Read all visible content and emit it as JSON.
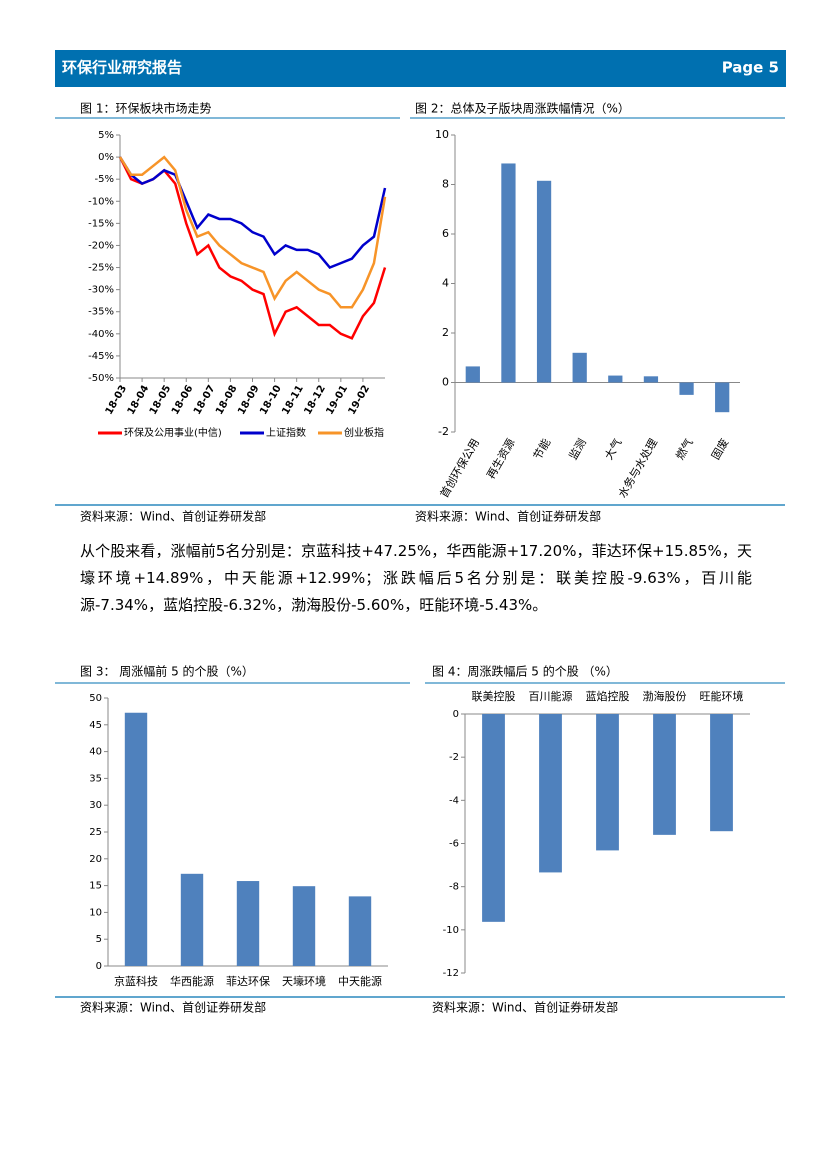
{
  "header": {
    "title": "环保行业研究报告",
    "page": "Page 5"
  },
  "paragraph": "从个股来看，涨幅前5名分别是：京蓝科技+47.25%，华西能源+17.20%，菲达环保+15.85%，天壕环境+14.89%，中天能源+12.99%；涨跌幅后5名分别是：联美控股-9.63%，百川能源-7.34%，蓝焰控股-6.32%，渤海股份-5.60%，旺能环境-5.43%。",
  "chart_data": [
    {
      "type": "line",
      "title": "图 1：环保板块市场走势",
      "source": "资料来源：Wind、首创证券研发部",
      "categories": [
        "18-03",
        null,
        "18-04",
        null,
        "18-05",
        null,
        "18-06",
        null,
        "18-07",
        null,
        "18-08",
        null,
        "18-09",
        null,
        "18-10",
        null,
        "18-11",
        null,
        "18-12",
        null,
        "19-01",
        null,
        "19-02",
        null,
        null
      ],
      "series": [
        {
          "name": "环保及公用事业(中信)",
          "color": "#ff0000",
          "values": [
            0,
            -5,
            -6,
            -5,
            -3,
            -6,
            -15,
            -22,
            -20,
            -25,
            -27,
            -28,
            -30,
            -31,
            -40,
            -35,
            -34,
            -36,
            -38,
            -38,
            -40,
            -41,
            -36,
            -33,
            -25
          ]
        },
        {
          "name": "上证指数",
          "color": "#0000cc",
          "values": [
            0,
            -4,
            -6,
            -5,
            -3,
            -4,
            -10,
            -16,
            -13,
            -14,
            -14,
            -15,
            -17,
            -18,
            -22,
            -20,
            -21,
            -21,
            -22,
            -25,
            -24,
            -23,
            -20,
            -18,
            -7
          ]
        },
        {
          "name": "创业板指",
          "color": "#f79428",
          "values": [
            0,
            -4,
            -4,
            -2,
            0,
            -3,
            -12,
            -18,
            -17,
            -20,
            -22,
            -24,
            -25,
            -26,
            -32,
            -28,
            -26,
            -28,
            -30,
            -31,
            -34,
            -34,
            -30,
            -24,
            -9
          ]
        }
      ],
      "ylim": [
        -50,
        5
      ],
      "yticks": [
        {
          "value": -50,
          "label": "-50%"
        },
        {
          "value": -45,
          "label": "-45%"
        },
        {
          "value": -40,
          "label": "-40%"
        },
        {
          "value": -35,
          "label": "-35%"
        },
        {
          "value": -30,
          "label": "-30%"
        },
        {
          "value": -25,
          "label": "-25%"
        },
        {
          "value": -20,
          "label": "-20%"
        },
        {
          "value": -15,
          "label": "-15%"
        },
        {
          "value": -10,
          "label": "-10%"
        },
        {
          "value": -5,
          "label": "-5%"
        },
        {
          "value": 0,
          "label": "0%"
        },
        {
          "value": 5,
          "label": "5%"
        }
      ],
      "legend": "bottom"
    },
    {
      "type": "bar",
      "title": "图 2：总体及子版块周涨跌幅情况（%）",
      "source": "资料来源：Wind、首创证券研发部",
      "categories": [
        "首创环保公用",
        "再生资源",
        "节能",
        "监测",
        "大气",
        "水务与水处理",
        "燃气",
        "固废"
      ],
      "values": [
        0.65,
        8.85,
        8.15,
        1.2,
        0.28,
        0.25,
        -0.5,
        -1.2
      ],
      "color": "#4f81bd",
      "ylim": [
        -2,
        10
      ],
      "yticks": [
        -2,
        0,
        2,
        4,
        6,
        8,
        10
      ]
    },
    {
      "type": "bar",
      "title": "图 3：  周涨幅前 5 的个股（%）",
      "source": "资料来源：Wind、首创证券研发部",
      "categories": [
        "京蓝科技",
        "华西能源",
        "菲达环保",
        "天壕环境",
        "中天能源"
      ],
      "values": [
        47.25,
        17.2,
        15.85,
        14.89,
        12.99
      ],
      "color": "#4f81bd",
      "ylim": [
        0,
        50
      ],
      "yticks": [
        0,
        5,
        10,
        15,
        20,
        25,
        30,
        35,
        40,
        45,
        50
      ]
    },
    {
      "type": "bar",
      "title": "图 4：周涨跌幅后 5 的个股  （%）",
      "source": "资料来源：Wind、首创证券研发部",
      "categories": [
        "联美控股",
        "百川能源",
        "蓝焰控股",
        "渤海股份",
        "旺能环境"
      ],
      "values": [
        -9.63,
        -7.34,
        -6.32,
        -5.6,
        -5.43
      ],
      "color": "#4f81bd",
      "ylim": [
        -12,
        0
      ],
      "yticks": [
        -12,
        -10,
        -8,
        -6,
        -4,
        -2,
        0
      ]
    }
  ]
}
